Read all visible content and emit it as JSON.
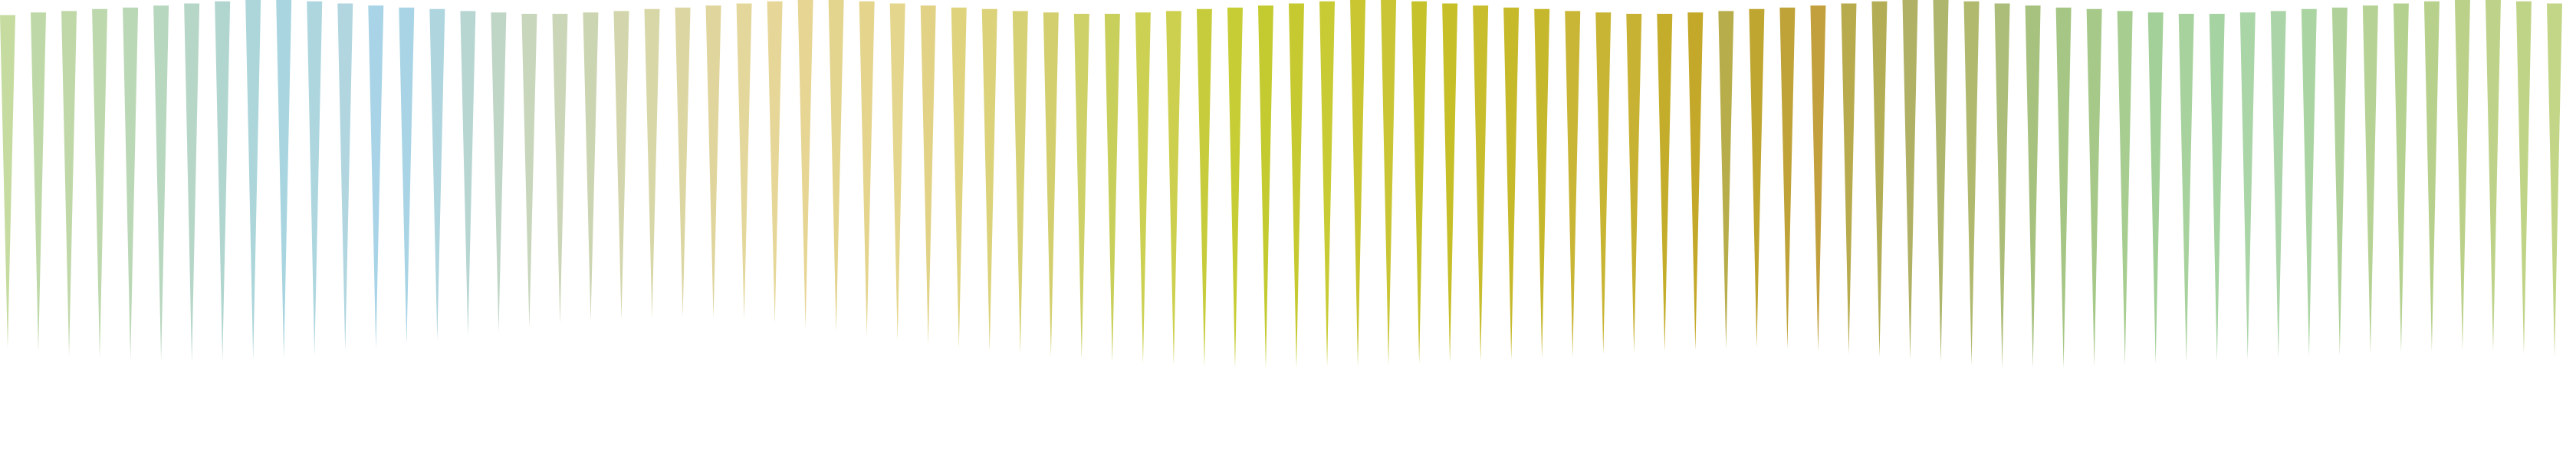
{
  "background_color": "#ffffff",
  "pattern": {
    "description_free": true,
    "spike_count": 84,
    "tops": [
      0.22,
      0.18,
      0.16,
      0.13,
      0.11,
      0.08,
      0.05,
      0.02,
      0.0,
      0.0,
      0.02,
      0.05,
      0.08,
      0.11,
      0.13,
      0.16,
      0.18,
      0.2,
      0.2,
      0.18,
      0.16,
      0.13,
      0.11,
      0.08,
      0.05,
      0.02,
      0.0,
      0.0,
      0.02,
      0.05,
      0.08,
      0.11,
      0.13,
      0.16,
      0.18,
      0.2,
      0.2,
      0.18,
      0.16,
      0.13,
      0.11,
      0.08,
      0.05,
      0.02,
      0.0,
      0.0,
      0.02,
      0.05,
      0.08,
      0.11,
      0.13,
      0.16,
      0.18,
      0.2,
      0.2,
      0.18,
      0.16,
      0.13,
      0.11,
      0.08,
      0.05,
      0.02,
      0.0,
      0.0,
      0.02,
      0.05,
      0.08,
      0.11,
      0.13,
      0.16,
      0.18,
      0.2,
      0.2,
      0.18,
      0.16,
      0.13,
      0.11,
      0.08,
      0.05,
      0.02,
      0.0,
      0.0,
      0.02,
      0.05
    ],
    "bottoms": [
      0.86,
      0.88,
      0.91,
      0.93,
      0.94,
      0.95,
      0.96,
      0.95,
      0.94,
      0.93,
      0.91,
      0.88,
      0.86,
      0.83,
      0.8,
      0.77,
      0.74,
      0.71,
      0.68,
      0.66,
      0.65,
      0.64,
      0.63,
      0.64,
      0.65,
      0.68,
      0.71,
      0.74,
      0.77,
      0.8,
      0.83,
      0.86,
      0.88,
      0.9,
      0.92,
      0.94,
      0.96,
      0.97,
      0.98,
      0.99,
      1.0,
      1.0,
      1.0,
      0.99,
      0.99,
      0.98,
      0.97,
      0.96,
      0.95,
      0.94,
      0.93,
      0.92,
      0.9,
      0.89,
      0.88,
      0.87,
      0.86,
      0.85,
      0.86,
      0.88,
      0.9,
      0.92,
      0.94,
      0.96,
      0.98,
      1.0,
      1.0,
      1.0,
      0.99,
      0.98,
      0.97,
      0.96,
      0.95,
      0.94,
      0.93,
      0.92,
      0.91,
      0.9,
      0.89,
      0.88,
      0.87,
      0.88,
      0.9,
      0.92
    ]
  },
  "colors": [
    "#c6dba0",
    "#bed9a7",
    "#c0d8a8",
    "#bed8ad",
    "#bbd8b6",
    "#b8d7bf",
    "#b6d6c8",
    "#b1d6cf",
    "#acd6da",
    "#a9d5e0",
    "#aed6df",
    "#b1d6e0",
    "#a9d4e7",
    "#a8d4e5",
    "#afd5de",
    "#b7d6d2",
    "#bfd5c6",
    "#c8d6bb",
    "#cbd6b8",
    "#ccd5b2",
    "#d3d6ac",
    "#d8d7a8",
    "#dcd6a3",
    "#e0d59d",
    "#e4d79c",
    "#e6d799",
    "#e6d593",
    "#e3d48e",
    "#e4d48c",
    "#e5d68d",
    "#e2d285",
    "#dfd37e",
    "#dbd27a",
    "#d7d176",
    "#d3cf6e",
    "#cdd168",
    "#c9cf5b",
    "#ccd154",
    "#cdd04e",
    "#c7cc3c",
    "#c7cd34",
    "#c3cb31",
    "#c6ca30",
    "#c9cb34",
    "#c9c631",
    "#c9c534",
    "#c5c22b",
    "#c6bf28",
    "#c8bd2d",
    "#c6b92a",
    "#c6b82c",
    "#c9b636",
    "#c8b534",
    "#c8b233",
    "#c3ad2b",
    "#c3a829",
    "#b8ad4b",
    "#bfa631",
    "#bfa339",
    "#c2a03d",
    "#b8ab4d",
    "#b3ae55",
    "#b0b164",
    "#aeb56c",
    "#b1b96f",
    "#acbd79",
    "#a7c17f",
    "#a5c684",
    "#a6c98a",
    "#a7cd91",
    "#a3cf98",
    "#a8d29d",
    "#a5d3a2",
    "#aad5a7",
    "#abd5a9",
    "#aad4a2",
    "#b0d29a",
    "#b6d294",
    "#b4d190",
    "#b7d08c",
    "#bbd18a",
    "#bed389",
    "#c0d488",
    "#c3d688"
  ]
}
